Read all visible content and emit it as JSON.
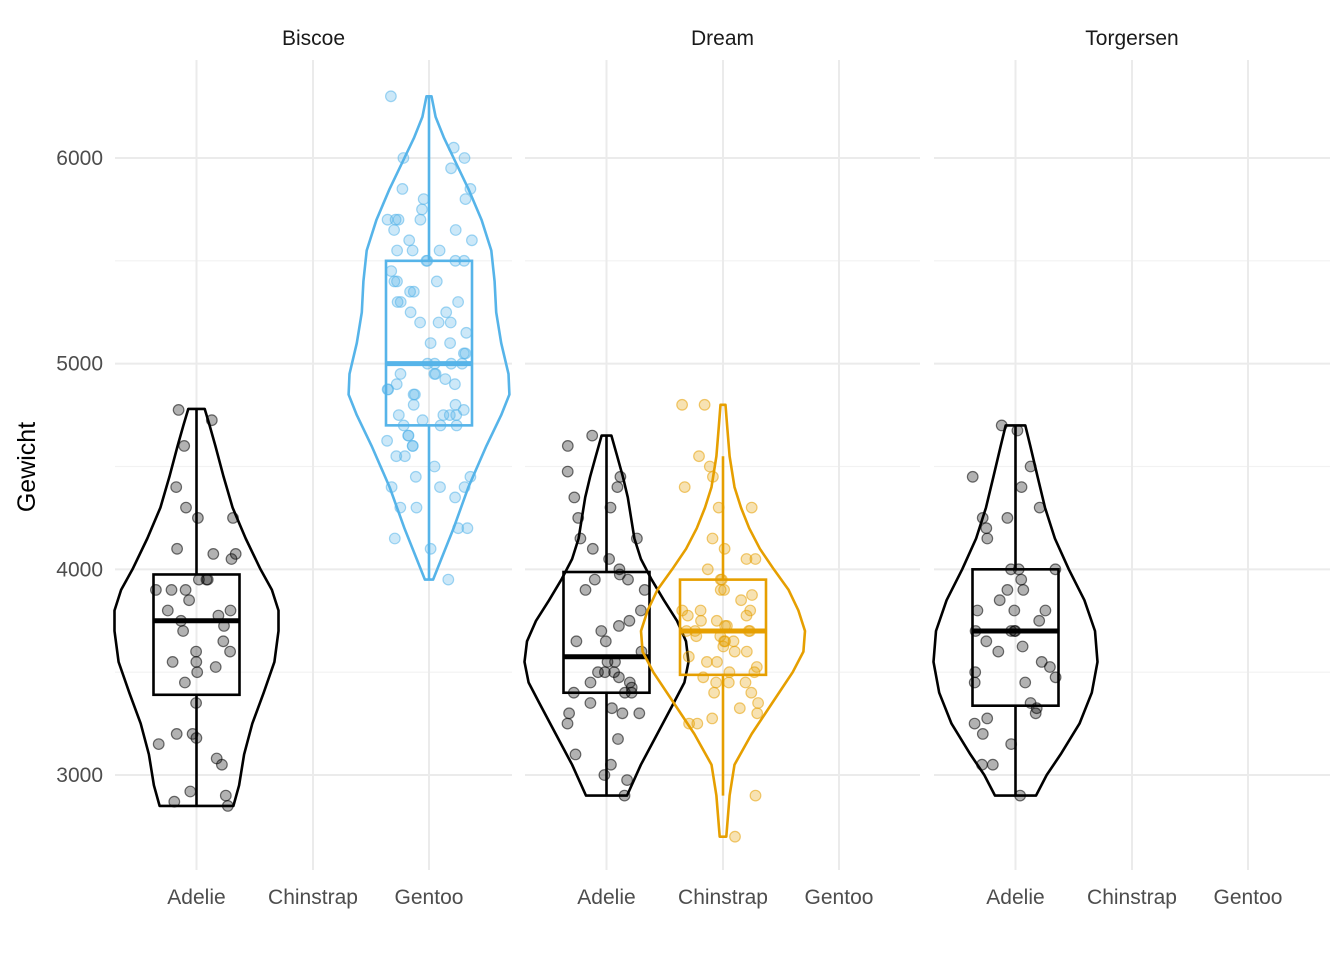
{
  "chart_data": {
    "type": "violin",
    "overlays": [
      "boxplot",
      "jittered points"
    ],
    "ylabel": "Gewicht",
    "xlabel": "",
    "ylim": [
      2500,
      6450
    ],
    "yticks": [
      3000,
      4000,
      5000,
      6000
    ],
    "y_minor_ticks": [
      3500,
      4500,
      5500
    ],
    "categories": [
      "Adelie",
      "Chinstrap",
      "Gentoo"
    ],
    "grid": true,
    "colors": {
      "Adelie": "#000000",
      "Chinstrap": "#E69F00",
      "Gentoo": "#56B4E9"
    },
    "facets": [
      {
        "name": "Biscoe",
        "groups": [
          {
            "species": "Adelie",
            "violin": [
              [
                2850,
                0.45
              ],
              [
                2950,
                0.52
              ],
              [
                3100,
                0.58
              ],
              [
                3250,
                0.68
              ],
              [
                3400,
                0.82
              ],
              [
                3550,
                0.95
              ],
              [
                3700,
                1.0
              ],
              [
                3800,
                1.0
              ],
              [
                3900,
                0.92
              ],
              [
                4000,
                0.78
              ],
              [
                4150,
                0.6
              ],
              [
                4300,
                0.44
              ],
              [
                4450,
                0.33
              ],
              [
                4600,
                0.23
              ],
              [
                4700,
                0.16
              ],
              [
                4780,
                0.1
              ]
            ],
            "box": {
              "q1": 3390,
              "median": 3750,
              "q3": 3975,
              "lower": 2850,
              "upper": 4775
            },
            "points": [
              2850,
              2870,
              2900,
              2920,
              3050,
              3080,
              3150,
              3180,
              3200,
              3200,
              3350,
              3450,
              3500,
              3525,
              3550,
              3550,
              3600,
              3600,
              3650,
              3700,
              3725,
              3750,
              3775,
              3800,
              3800,
              3850,
              3900,
              3900,
              3900,
              3950,
              3950,
              3950,
              4050,
              4075,
              4075,
              4100,
              4250,
              4250,
              4300,
              4400,
              4600,
              4725,
              4775
            ]
          },
          {
            "species": "Gentoo",
            "violin": [
              [
                3950,
                0.05
              ],
              [
                4050,
                0.15
              ],
              [
                4200,
                0.3
              ],
              [
                4400,
                0.48
              ],
              [
                4600,
                0.7
              ],
              [
                4750,
                0.88
              ],
              [
                4850,
                0.98
              ],
              [
                4950,
                0.97
              ],
              [
                5100,
                0.88
              ],
              [
                5250,
                0.82
              ],
              [
                5400,
                0.8
              ],
              [
                5550,
                0.76
              ],
              [
                5700,
                0.64
              ],
              [
                5850,
                0.48
              ],
              [
                6000,
                0.3
              ],
              [
                6100,
                0.18
              ],
              [
                6200,
                0.08
              ],
              [
                6300,
                0.03
              ]
            ],
            "box": {
              "q1": 4700,
              "median": 5000,
              "q3": 5500,
              "lower": 3950,
              "upper": 6300
            },
            "points": [
              3950,
              4100,
              4150,
              4200,
              4200,
              4300,
              4300,
              4350,
              4400,
              4400,
              4400,
              4450,
              4450,
              4500,
              4550,
              4550,
              4600,
              4600,
              4625,
              4650,
              4650,
              4700,
              4700,
              4700,
              4725,
              4750,
              4750,
              4750,
              4750,
              4775,
              4800,
              4800,
              4850,
              4850,
              4875,
              4875,
              4900,
              4900,
              4925,
              4950,
              4950,
              4950,
              5000,
              5000,
              5000,
              5000,
              5050,
              5050,
              5100,
              5100,
              5150,
              5200,
              5200,
              5200,
              5250,
              5250,
              5300,
              5300,
              5300,
              5350,
              5350,
              5400,
              5400,
              5400,
              5450,
              5500,
              5500,
              5500,
              5500,
              5550,
              5550,
              5550,
              5600,
              5600,
              5650,
              5650,
              5700,
              5700,
              5700,
              5700,
              5750,
              5800,
              5800,
              5850,
              5850,
              5950,
              6000,
              6000,
              6050,
              6300
            ]
          }
        ]
      },
      {
        "name": "Dream",
        "groups": [
          {
            "species": "Adelie",
            "violin": [
              [
                2900,
                0.25
              ],
              [
                3050,
                0.42
              ],
              [
                3200,
                0.62
              ],
              [
                3350,
                0.82
              ],
              [
                3450,
                0.95
              ],
              [
                3550,
                1.0
              ],
              [
                3650,
                0.97
              ],
              [
                3750,
                0.86
              ],
              [
                3850,
                0.7
              ],
              [
                3950,
                0.55
              ],
              [
                4050,
                0.42
              ],
              [
                4150,
                0.34
              ],
              [
                4250,
                0.3
              ],
              [
                4350,
                0.26
              ],
              [
                4450,
                0.2
              ],
              [
                4550,
                0.13
              ],
              [
                4650,
                0.06
              ]
            ],
            "box": {
              "q1": 3400,
              "median": 3575,
              "q3": 3987,
              "lower": 2900,
              "upper": 4650
            },
            "points": [
              2900,
              2975,
              3000,
              3050,
              3100,
              3175,
              3250,
              3300,
              3300,
              3300,
              3325,
              3350,
              3400,
              3400,
              3400,
              3425,
              3450,
              3450,
              3475,
              3500,
              3500,
              3500,
              3550,
              3550,
              3600,
              3650,
              3650,
              3700,
              3725,
              3750,
              3800,
              3900,
              3900,
              3950,
              3950,
              3975,
              4000,
              4050,
              4100,
              4150,
              4150,
              4250,
              4300,
              4350,
              4400,
              4450,
              4475,
              4600,
              4650
            ]
          },
          {
            "species": "Chinstrap",
            "violin": [
              [
                2700,
                0.04
              ],
              [
                2900,
                0.08
              ],
              [
                3050,
                0.14
              ],
              [
                3200,
                0.35
              ],
              [
                3350,
                0.6
              ],
              [
                3500,
                0.85
              ],
              [
                3600,
                0.98
              ],
              [
                3700,
                1.0
              ],
              [
                3800,
                0.92
              ],
              [
                3900,
                0.8
              ],
              [
                4000,
                0.62
              ],
              [
                4100,
                0.45
              ],
              [
                4200,
                0.32
              ],
              [
                4300,
                0.22
              ],
              [
                4400,
                0.14
              ],
              [
                4550,
                0.08
              ],
              [
                4700,
                0.05
              ],
              [
                4800,
                0.03
              ]
            ],
            "box": {
              "q1": 3487,
              "median": 3700,
              "q3": 3950,
              "lower": 2900,
              "upper": 4550
            },
            "points": [
              2700,
              2900,
              3250,
              3250,
              3275,
              3300,
              3325,
              3350,
              3400,
              3400,
              3450,
              3450,
              3450,
              3475,
              3500,
              3500,
              3525,
              3550,
              3550,
              3575,
              3600,
              3600,
              3625,
              3650,
              3650,
              3650,
              3675,
              3675,
              3700,
              3700,
              3700,
              3700,
              3725,
              3725,
              3750,
              3750,
              3775,
              3775,
              3800,
              3800,
              3800,
              3850,
              3875,
              3900,
              3900,
              3950,
              3950,
              4000,
              4050,
              4050,
              4100,
              4150,
              4300,
              4300,
              4400,
              4450,
              4500,
              4550,
              4800,
              4800
            ]
          }
        ]
      },
      {
        "name": "Torgersen",
        "groups": [
          {
            "species": "Adelie",
            "violin": [
              [
                2900,
                0.25
              ],
              [
                3000,
                0.38
              ],
              [
                3100,
                0.55
              ],
              [
                3250,
                0.78
              ],
              [
                3400,
                0.93
              ],
              [
                3550,
                1.0
              ],
              [
                3700,
                0.97
              ],
              [
                3850,
                0.84
              ],
              [
                4000,
                0.65
              ],
              [
                4150,
                0.48
              ],
              [
                4300,
                0.36
              ],
              [
                4450,
                0.27
              ],
              [
                4600,
                0.18
              ],
              [
                4700,
                0.12
              ]
            ],
            "box": {
              "q1": 3337,
              "median": 3700,
              "q3": 4000,
              "lower": 2900,
              "upper": 4700
            },
            "points": [
              2900,
              3050,
              3050,
              3150,
              3200,
              3250,
              3275,
              3300,
              3325,
              3350,
              3450,
              3450,
              3475,
              3500,
              3525,
              3550,
              3600,
              3625,
              3650,
              3700,
              3700,
              3700,
              3700,
              3750,
              3800,
              3800,
              3800,
              3850,
              3900,
              3900,
              3950,
              4000,
              4000,
              4000,
              4150,
              4200,
              4250,
              4250,
              4300,
              4400,
              4450,
              4500,
              4675,
              4700
            ]
          }
        ]
      }
    ]
  }
}
